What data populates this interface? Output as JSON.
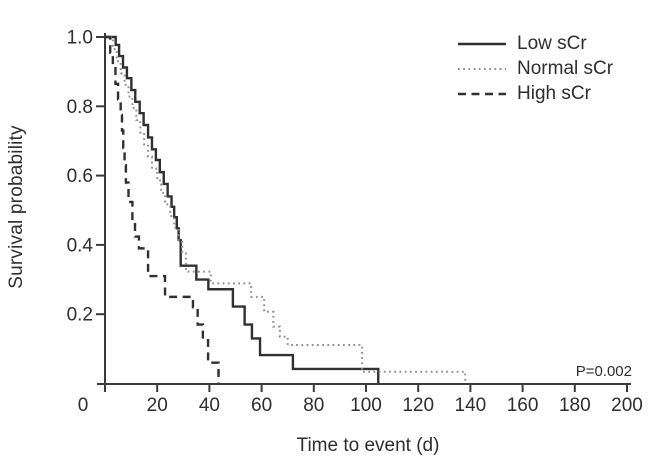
{
  "chart_data": {
    "type": "line",
    "subtype": "kaplan-meier-step",
    "title": "",
    "xlabel": "Time to event (d)",
    "ylabel": "Survival probability",
    "xlim": [
      0,
      200
    ],
    "ylim": [
      0,
      1
    ],
    "grid": false,
    "legend_position": "top-right",
    "x_ticks": {
      "values": [
        0,
        20,
        40,
        60,
        80,
        100,
        120,
        140,
        160,
        180,
        200
      ],
      "labels": [
        "0",
        "20",
        "40",
        "60",
        "80",
        "100",
        "120",
        "140",
        "160",
        "180",
        "200"
      ]
    },
    "y_ticks": {
      "values": [
        1.0,
        0.8,
        0.6,
        0.4,
        0.2
      ],
      "labels": [
        "1.0",
        "0.8",
        "0.6",
        "0.4",
        "0.2"
      ]
    },
    "annotations": [
      {
        "text": "P=0.002",
        "position": "bottom-right"
      }
    ],
    "colors": {
      "solid": "#303030",
      "dotted": "#8f8f8f",
      "dashed": "#303030",
      "axis": "#3a3a3a",
      "text": "#2e2e2e"
    },
    "series": [
      {
        "name": "Low sCr",
        "style": "solid",
        "steps": [
          [
            0,
            1.0
          ],
          [
            4.1,
            0.977
          ],
          [
            5.4,
            0.945
          ],
          [
            6.9,
            0.912
          ],
          [
            8.4,
            0.881
          ],
          [
            10.1,
            0.847
          ],
          [
            11.6,
            0.813
          ],
          [
            13.3,
            0.78
          ],
          [
            14.8,
            0.746
          ],
          [
            16.5,
            0.71
          ],
          [
            18,
            0.676
          ],
          [
            19.5,
            0.645
          ],
          [
            21,
            0.61
          ],
          [
            22.5,
            0.576
          ],
          [
            24,
            0.54
          ],
          [
            25.5,
            0.51
          ],
          [
            26.5,
            0.48
          ],
          [
            27.5,
            0.448
          ],
          [
            28.2,
            0.414
          ],
          [
            29,
            0.34
          ],
          [
            35,
            0.3
          ],
          [
            39.6,
            0.272
          ],
          [
            49,
            0.222
          ],
          [
            53.5,
            0.17
          ],
          [
            56.3,
            0.13
          ],
          [
            59.4,
            0.082
          ],
          [
            72,
            0.042
          ],
          [
            104.7,
            0
          ]
        ]
      },
      {
        "name": "Normal sCr",
        "style": "dotted",
        "steps": [
          [
            0,
            1.0
          ],
          [
            3,
            0.965
          ],
          [
            4.5,
            0.93
          ],
          [
            6,
            0.895
          ],
          [
            7.5,
            0.862
          ],
          [
            9,
            0.828
          ],
          [
            10.5,
            0.795
          ],
          [
            12,
            0.76
          ],
          [
            13.5,
            0.724
          ],
          [
            15,
            0.69
          ],
          [
            16.5,
            0.655
          ],
          [
            18,
            0.62
          ],
          [
            20,
            0.586
          ],
          [
            21.5,
            0.55
          ],
          [
            23,
            0.517
          ],
          [
            25,
            0.483
          ],
          [
            26.5,
            0.45
          ],
          [
            28,
            0.414
          ],
          [
            29.5,
            0.38
          ],
          [
            31,
            0.323
          ],
          [
            40.5,
            0.289
          ],
          [
            56,
            0.25
          ],
          [
            61,
            0.207
          ],
          [
            64.5,
            0.164
          ],
          [
            67,
            0.135
          ],
          [
            70,
            0.111
          ],
          [
            98.5,
            0.034
          ],
          [
            138,
            0
          ]
        ]
      },
      {
        "name": "High sCr",
        "style": "dashed",
        "steps": [
          [
            0,
            1.0
          ],
          [
            2,
            0.955
          ],
          [
            3,
            0.91
          ],
          [
            4,
            0.865
          ],
          [
            5,
            0.82
          ],
          [
            6,
            0.775
          ],
          [
            6.5,
            0.73
          ],
          [
            7,
            0.68
          ],
          [
            7.5,
            0.63
          ],
          [
            8,
            0.58
          ],
          [
            9,
            0.524
          ],
          [
            10.5,
            0.47
          ],
          [
            11.5,
            0.424
          ],
          [
            13,
            0.39
          ],
          [
            16.5,
            0.31
          ],
          [
            23,
            0.25
          ],
          [
            33.7,
            0.22
          ],
          [
            35.5,
            0.17
          ],
          [
            37.5,
            0.125
          ],
          [
            39.5,
            0.06
          ],
          [
            43.5,
            0
          ]
        ]
      }
    ]
  }
}
